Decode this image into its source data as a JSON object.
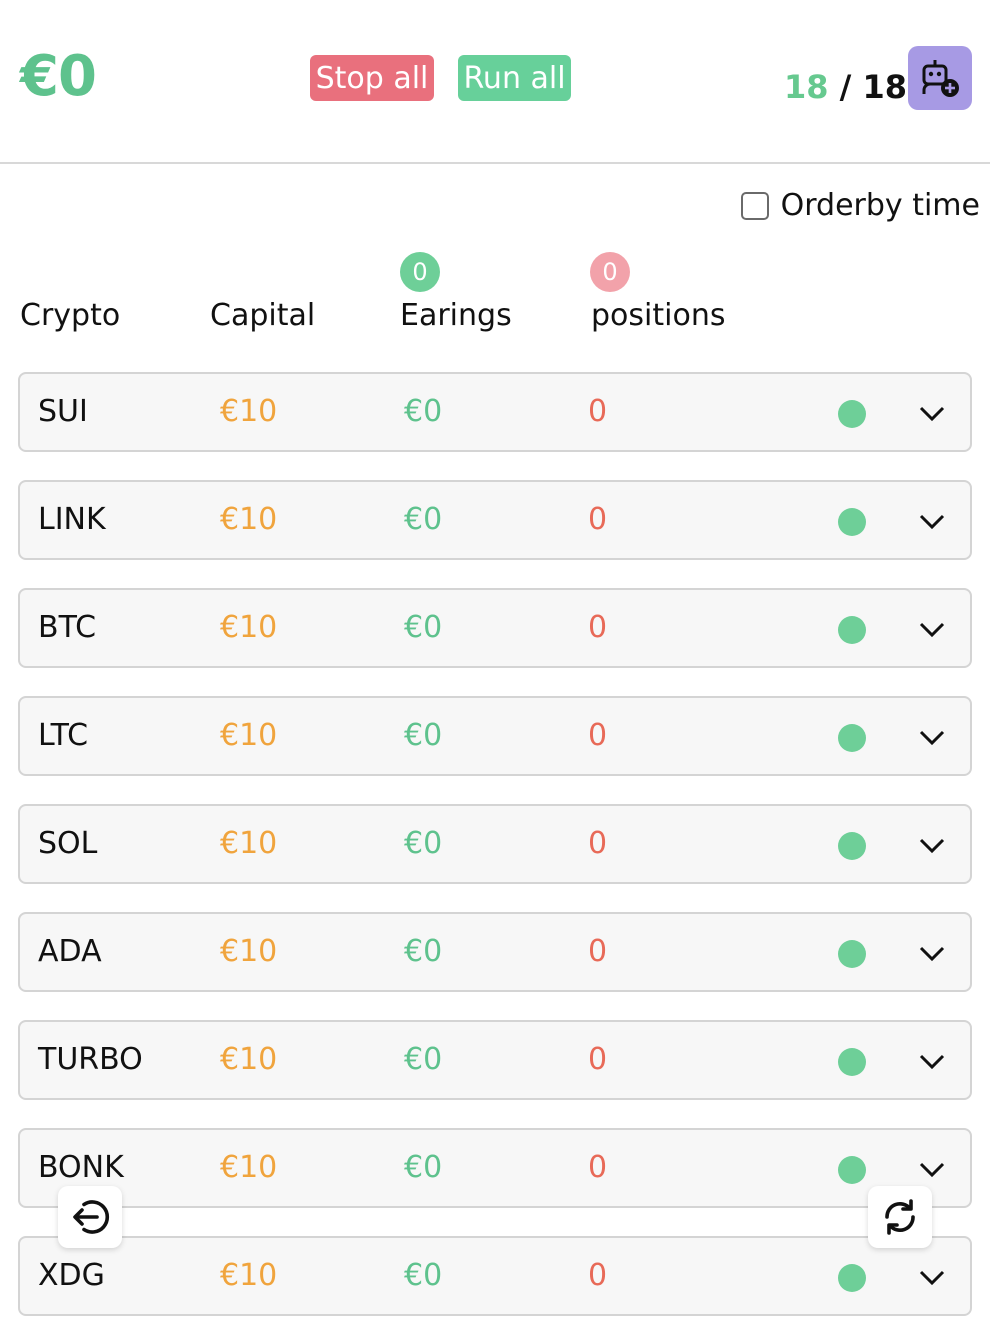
{
  "header": {
    "total_balance": "€0",
    "stop_all_label": "Stop all",
    "run_all_label": "Run all",
    "active_count": "18",
    "separator": " / ",
    "total_count": "18",
    "add_bot_icon": "robot-add-icon"
  },
  "controls": {
    "orderby_label": "Orderby time",
    "orderby_checked": false
  },
  "columns": {
    "crypto": "Crypto",
    "capital": "Capital",
    "earnings": "Earings",
    "earnings_badge": "0",
    "positions": "positions",
    "positions_badge": "0"
  },
  "bots": [
    {
      "symbol": "SUI",
      "capital": "€10",
      "earnings": "€0",
      "positions": "0"
    },
    {
      "symbol": "LINK",
      "capital": "€10",
      "earnings": "€0",
      "positions": "0"
    },
    {
      "symbol": "BTC",
      "capital": "€10",
      "earnings": "€0",
      "positions": "0"
    },
    {
      "symbol": "LTC",
      "capital": "€10",
      "earnings": "€0",
      "positions": "0"
    },
    {
      "symbol": "SOL",
      "capital": "€10",
      "earnings": "€0",
      "positions": "0"
    },
    {
      "symbol": "ADA",
      "capital": "€10",
      "earnings": "€0",
      "positions": "0"
    },
    {
      "symbol": "TURBO",
      "capital": "€10",
      "earnings": "€0",
      "positions": "0"
    },
    {
      "symbol": "BONK",
      "capital": "€10",
      "earnings": "€0",
      "positions": "0"
    },
    {
      "symbol": "XDG",
      "capital": "€10",
      "earnings": "€0",
      "positions": "0"
    }
  ],
  "floating": {
    "left_icon": "logout-icon",
    "right_icon": "refresh-icon"
  },
  "colors": {
    "green": "#5ec28d",
    "red_button": "#e9707d",
    "green_button": "#67d09a",
    "capital": "#f0a43d",
    "positions": "#e86a58",
    "robot_button": "#a79ae4"
  }
}
